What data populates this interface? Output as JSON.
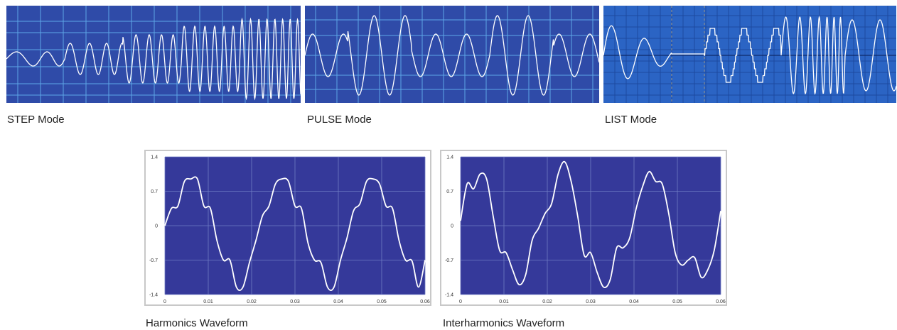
{
  "captions": {
    "step": "STEP Mode",
    "pulse": "PULSE Mode",
    "list": "LIST Mode",
    "harmonics": "Harmonics Waveform",
    "interharmonics": "Interharmonics Waveform"
  },
  "colors": {
    "scope_bg": "#2f4ba8",
    "scope_grid": "#5fa8e8",
    "list_bg": "#2b64c4",
    "chart_bg": "#35399a",
    "trace": "#ffffff"
  },
  "chart_data": [
    {
      "type": "line",
      "caption_ref": "harmonics",
      "title": "",
      "xlabel": "",
      "ylabel": "",
      "xlim": [
        0,
        0.06
      ],
      "ylim": [
        -1.4,
        1.4
      ],
      "x_ticks": [
        "0",
        "0.01",
        "0.02",
        "0.03",
        "0.04",
        "0.05",
        "0.06"
      ],
      "y_ticks": [
        "1.4",
        "0.7",
        "0",
        "-0.7",
        "-1.4"
      ],
      "grid": true,
      "series": [
        {
          "x": [
            0,
            0.0015,
            0.003,
            0.0045,
            0.006,
            0.0075,
            0.009,
            0.0105,
            0.012,
            0.0135,
            0.015,
            0.0165,
            0.018,
            0.0195,
            0.021,
            0.0225,
            0.024,
            0.0255,
            0.027,
            0.0285,
            0.03,
            0.0315,
            0.033,
            0.0345,
            0.036,
            0.0375,
            0.039,
            0.0405,
            0.042,
            0.0435,
            0.045,
            0.0465,
            0.048,
            0.0495,
            0.051,
            0.0525,
            0.054,
            0.0555,
            0.057,
            0.0585,
            0.06
          ],
          "y": [
            0,
            0.35,
            0.4,
            0.9,
            0.95,
            0.95,
            0.4,
            0.35,
            -0.3,
            -0.7,
            -0.7,
            -1.25,
            -1.25,
            -0.75,
            -0.3,
            0.2,
            0.4,
            0.85,
            0.95,
            0.9,
            0.4,
            0.35,
            -0.35,
            -0.7,
            -0.75,
            -1.25,
            -1.25,
            -0.7,
            -0.25,
            0.3,
            0.45,
            0.9,
            0.95,
            0.85,
            0.4,
            0.35,
            -0.3,
            -0.7,
            -0.72,
            -1.25,
            -0.7
          ]
        }
      ]
    },
    {
      "type": "line",
      "caption_ref": "interharmonics",
      "title": "",
      "xlabel": "",
      "ylabel": "",
      "xlim": [
        0,
        0.06
      ],
      "ylim": [
        -1.4,
        1.4
      ],
      "x_ticks": [
        "0",
        "0.01",
        "0.02",
        "0.03",
        "0.04",
        "0.05",
        "0.06"
      ],
      "y_ticks": [
        "1.4",
        "0.7",
        "0",
        "-0.7",
        "-1.4"
      ],
      "grid": true,
      "series": [
        {
          "x": [
            0,
            0.0015,
            0.003,
            0.0045,
            0.006,
            0.0075,
            0.009,
            0.0105,
            0.012,
            0.0135,
            0.015,
            0.0165,
            0.018,
            0.0195,
            0.021,
            0.0225,
            0.024,
            0.0255,
            0.027,
            0.0285,
            0.03,
            0.0315,
            0.033,
            0.0345,
            0.036,
            0.0375,
            0.039,
            0.0405,
            0.042,
            0.0435,
            0.045,
            0.0465,
            0.048,
            0.0495,
            0.051,
            0.0525,
            0.054,
            0.0555,
            0.057,
            0.0585,
            0.06
          ],
          "y": [
            0.1,
            0.85,
            0.75,
            1.05,
            0.95,
            0.2,
            -0.5,
            -0.55,
            -0.9,
            -1.2,
            -1.0,
            -0.3,
            -0.05,
            0.25,
            0.45,
            1.05,
            1.3,
            0.9,
            0.2,
            -0.6,
            -0.55,
            -0.95,
            -1.25,
            -1.1,
            -0.45,
            -0.45,
            -0.25,
            0.35,
            0.8,
            1.1,
            0.9,
            0.85,
            0.25,
            -0.55,
            -0.8,
            -0.7,
            -0.65,
            -1.05,
            -0.9,
            -0.5,
            0.3
          ]
        }
      ]
    }
  ]
}
